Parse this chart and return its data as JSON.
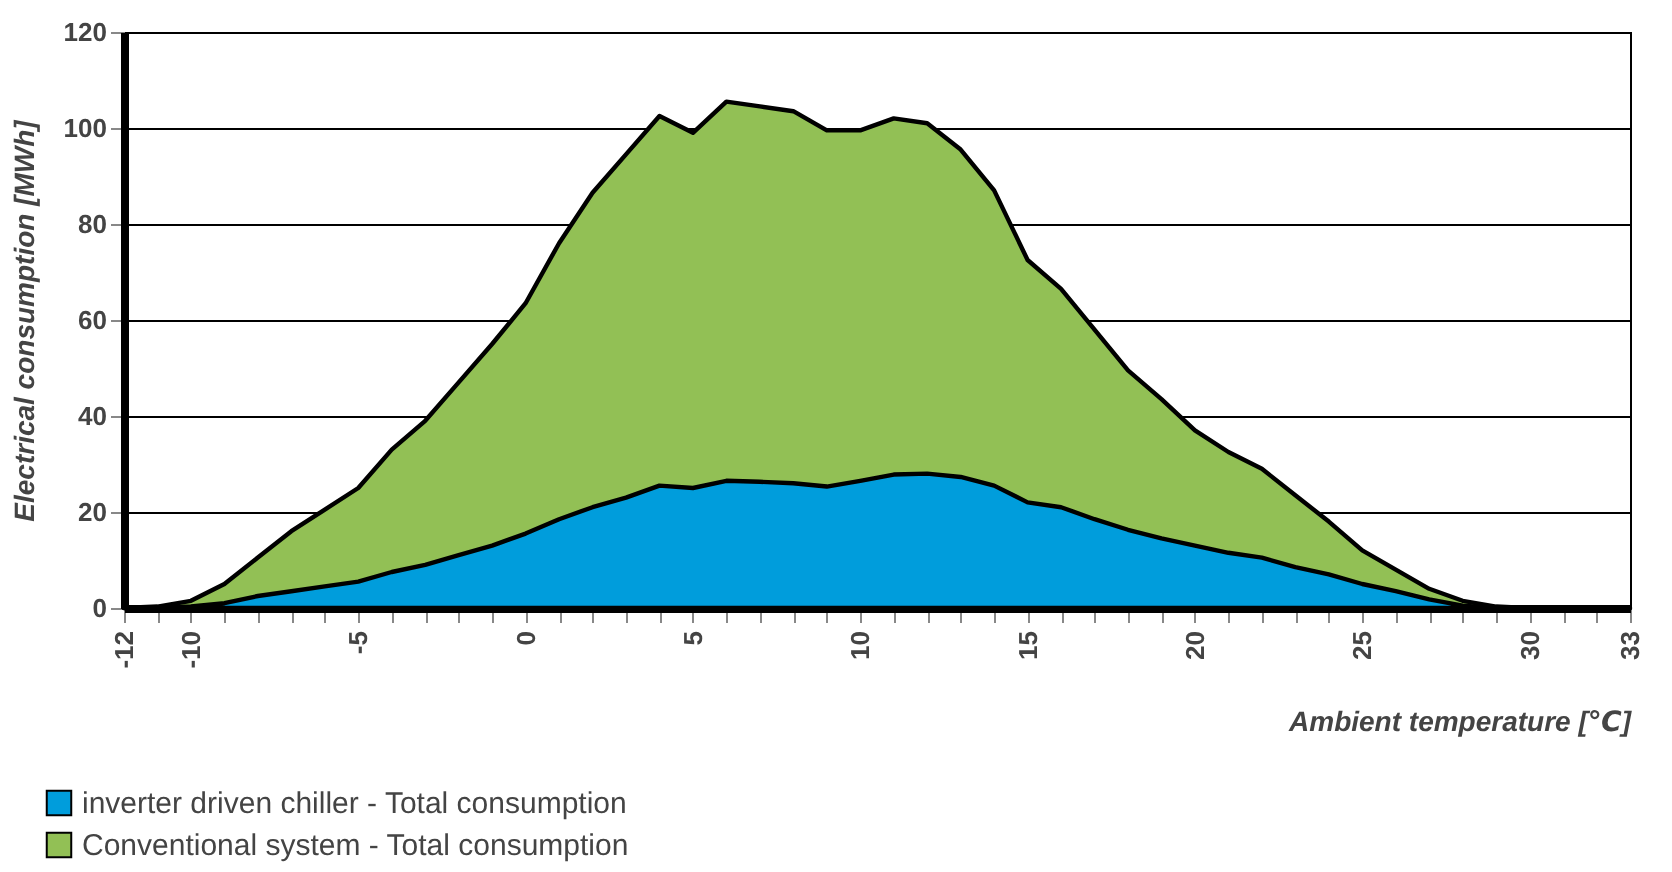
{
  "chart_data": {
    "type": "area",
    "xlabel": "Ambient temperature [℃]",
    "ylabel": "Electrical consumption [MWh]",
    "x": [
      -12,
      -11,
      -10,
      -9,
      -8,
      -7,
      -6,
      -5,
      -4,
      -3,
      -2,
      -1,
      0,
      1,
      2,
      3,
      4,
      5,
      6,
      7,
      8,
      9,
      10,
      11,
      12,
      13,
      14,
      15,
      16,
      17,
      18,
      19,
      20,
      21,
      22,
      23,
      24,
      25,
      26,
      27,
      28,
      29,
      30,
      31,
      32,
      33
    ],
    "series": [
      {
        "name": "inverter driven chiller - Total consumption",
        "color": "#009ddc",
        "values": [
          0,
          0,
          0.3,
          1,
          2.5,
          3.5,
          4.5,
          5.5,
          7.5,
          9,
          11,
          13,
          15.5,
          18.5,
          21,
          23,
          25.5,
          25,
          26.5,
          26.3,
          26,
          25.3,
          26.5,
          27.8,
          28,
          27.3,
          25.5,
          22,
          21,
          18.5,
          16.3,
          14.5,
          13,
          11.5,
          10.5,
          8.5,
          7,
          5,
          3.5,
          1.8,
          0.5,
          0,
          0,
          0,
          0,
          0
        ]
      },
      {
        "name": "Conventional system - Total consumption",
        "color": "#92c055",
        "values": [
          0,
          0.3,
          1.5,
          5,
          10.5,
          16,
          20.5,
          25,
          33,
          39,
          47,
          55,
          63.5,
          76,
          86.5,
          94.5,
          102.5,
          99,
          105.5,
          104.5,
          103.5,
          99.5,
          99.5,
          102,
          101,
          95.5,
          87,
          72.5,
          66.5,
          58,
          49.5,
          43.5,
          37,
          32.5,
          29,
          23.5,
          18,
          12,
          8,
          4,
          1.5,
          0.3,
          0,
          0,
          0,
          0
        ]
      }
    ],
    "xlim": [
      -12,
      33
    ],
    "xticks": [
      -12,
      {
        "value": -11,
        "label": null
      },
      -10,
      {
        "value": -9,
        "label": null
      },
      {
        "value": -8,
        "label": null
      },
      {
        "value": -7,
        "label": null
      },
      {
        "value": -6,
        "label": null
      },
      -5,
      {
        "value": -4,
        "label": null
      },
      {
        "value": -3,
        "label": null
      },
      {
        "value": -2,
        "label": null
      },
      {
        "value": -1,
        "label": null
      },
      0,
      {
        "value": 1,
        "label": null
      },
      {
        "value": 2,
        "label": null
      },
      {
        "value": 3,
        "label": null
      },
      {
        "value": 4,
        "label": null
      },
      5,
      {
        "value": 6,
        "label": null
      },
      {
        "value": 7,
        "label": null
      },
      {
        "value": 8,
        "label": null
      },
      {
        "value": 9,
        "label": null
      },
      10,
      {
        "value": 11,
        "label": null
      },
      {
        "value": 12,
        "label": null
      },
      {
        "value": 13,
        "label": null
      },
      {
        "value": 14,
        "label": null
      },
      15,
      {
        "value": 16,
        "label": null
      },
      {
        "value": 17,
        "label": null
      },
      {
        "value": 18,
        "label": null
      },
      {
        "value": 19,
        "label": null
      },
      20,
      {
        "value": 21,
        "label": null
      },
      {
        "value": 22,
        "label": null
      },
      {
        "value": 23,
        "label": null
      },
      {
        "value": 24,
        "label": null
      },
      25,
      {
        "value": 26,
        "label": null
      },
      {
        "value": 27,
        "label": null
      },
      {
        "value": 28,
        "label": null
      },
      {
        "value": 29,
        "label": null
      },
      30,
      {
        "value": 31,
        "label": null
      },
      {
        "value": 32,
        "label": null
      },
      33
    ],
    "ylim": [
      0,
      120
    ],
    "yticks": [
      0,
      20,
      40,
      60,
      80,
      100,
      120
    ],
    "grid": "y",
    "legend": "bottom left"
  }
}
